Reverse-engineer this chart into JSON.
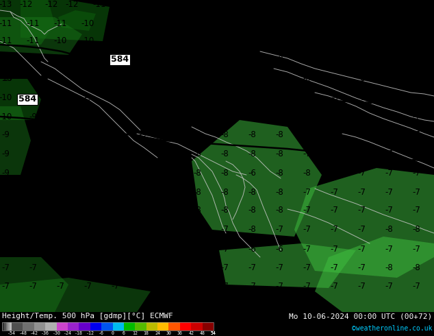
{
  "title_left": "Height/Temp. 500 hPa [gdmp][°C] ECMWF",
  "title_right": "Mo 10-06-2024 00:00 UTC (00+72)",
  "credit": "©weatheronline.co.uk",
  "colorbar_levels": [
    -54,
    -48,
    -42,
    -36,
    -30,
    -24,
    -18,
    -12,
    -6,
    0,
    6,
    12,
    18,
    24,
    30,
    36,
    42,
    48,
    54
  ],
  "colorbar_colors": [
    "#505050",
    "#707070",
    "#909090",
    "#b0b0b0",
    "#cc44cc",
    "#9922cc",
    "#6600cc",
    "#0000ee",
    "#0055ee",
    "#00bbee",
    "#00bb00",
    "#55bb00",
    "#bbbb00",
    "#ffbb00",
    "#ff5500",
    "#ff0000",
    "#cc0000",
    "#880000"
  ],
  "map_bg_color": "#2d9e2d",
  "fig_bg_color": "#000000",
  "bottom_bar_bg": "#000000",
  "text_color": "#ffffff",
  "credit_color": "#00ccff",
  "num_color": "#000000",
  "contour_thick_color": "#000000",
  "contour_thin_color": "#c8c8c8",
  "lighter_green": "#3fc03f",
  "darker_green": "#1a7a1a",
  "darkest_green": "#0d5a0d"
}
